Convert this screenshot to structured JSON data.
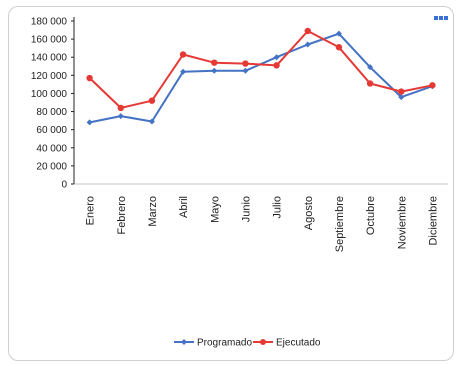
{
  "chart_data": {
    "type": "line",
    "categories": [
      "Enero",
      "Febrero",
      "Marzo",
      "Abril",
      "Mayo",
      "Junio",
      "Julio",
      "Agosto",
      "Septiembre",
      "Octubre",
      "Noviembre",
      "Diciembre"
    ],
    "series": [
      {
        "name": "Programado",
        "color": "#4472c4",
        "values": [
          68000,
          75000,
          69000,
          124000,
          125000,
          125000,
          140000,
          154000,
          166000,
          129000,
          96000,
          108000
        ]
      },
      {
        "name": "Ejecutado",
        "color": "#e53935",
        "values": [
          117000,
          84000,
          92000,
          143000,
          134000,
          133000,
          131000,
          169000,
          151000,
          111000,
          102000,
          109000
        ]
      }
    ],
    "y_ticks": [
      "0",
      "20 000",
      "40 000",
      "60 000",
      "80 000",
      "100 000",
      "120 000",
      "140 000",
      "160 000",
      "180 000"
    ],
    "ylim": [
      0,
      180000
    ],
    "legend_position": "bottom",
    "grid": false
  }
}
